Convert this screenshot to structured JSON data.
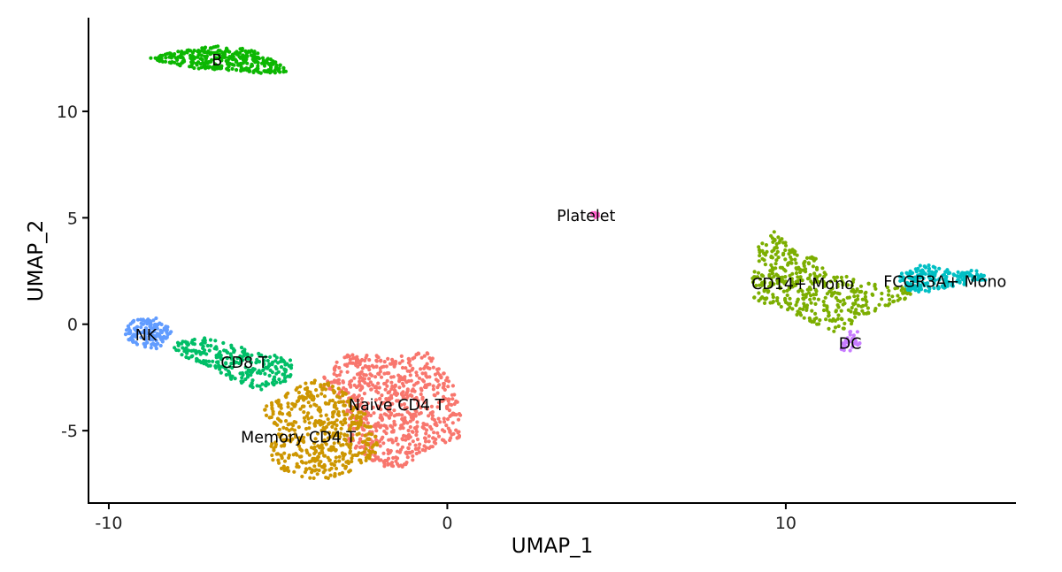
{
  "chart_data": {
    "type": "scatter",
    "title": "",
    "xlabel": "UMAP_1",
    "ylabel": "UMAP_2",
    "xlim": [
      -10.6,
      16.8
    ],
    "ylim": [
      -8.4,
      14.4
    ],
    "x_ticks": [
      -10,
      0,
      10
    ],
    "y_ticks": [
      10,
      5,
      0,
      -5
    ],
    "grid": false,
    "legend": "none",
    "clusters": [
      {
        "label": "Naive CD4 T",
        "color": "#F8766D",
        "n": 700,
        "shape": [
          [
            -3.6,
            -2.1
          ],
          [
            -2.9,
            -1.4
          ],
          [
            -1.5,
            -1.5
          ],
          [
            -0.6,
            -1.3
          ],
          [
            0.1,
            -2.6
          ],
          [
            0.4,
            -3.4
          ],
          [
            0.4,
            -5.3
          ],
          [
            -0.6,
            -5.9
          ],
          [
            -1.2,
            -6.7
          ],
          [
            -2.0,
            -6.7
          ],
          [
            -2.9,
            -5.6
          ],
          [
            -3.0,
            -3.6
          ],
          [
            -3.7,
            -3.0
          ]
        ]
      },
      {
        "label": "Memory CD4 T",
        "color": "#CD9600",
        "n": 480,
        "shape": [
          [
            -5.5,
            -4.0
          ],
          [
            -4.8,
            -3.3
          ],
          [
            -4.0,
            -2.6
          ],
          [
            -3.3,
            -2.8
          ],
          [
            -2.6,
            -3.8
          ],
          [
            -1.9,
            -5.3
          ],
          [
            -2.2,
            -6.3
          ],
          [
            -3.2,
            -7.2
          ],
          [
            -4.0,
            -7.3
          ],
          [
            -5.0,
            -6.8
          ],
          [
            -5.3,
            -6.0
          ],
          [
            -5.0,
            -5.0
          ]
        ]
      },
      {
        "label": "CD14+ Mono",
        "color": "#7CAE00",
        "n": 420,
        "shape": [
          [
            9.0,
            2.2
          ],
          [
            9.2,
            3.7
          ],
          [
            9.7,
            4.4
          ],
          [
            10.4,
            3.2
          ],
          [
            10.9,
            3.3
          ],
          [
            11.3,
            2.5
          ],
          [
            12.3,
            2.0
          ],
          [
            13.4,
            1.8
          ],
          [
            13.8,
            1.3
          ],
          [
            12.6,
            0.6
          ],
          [
            12.0,
            0.1
          ],
          [
            11.6,
            -0.5
          ],
          [
            11.0,
            -0.1
          ],
          [
            10.0,
            0.7
          ],
          [
            9.0,
            1.1
          ]
        ]
      },
      {
        "label": "B",
        "color": "#0CB702",
        "n": 330,
        "shape": [
          [
            -8.8,
            12.5
          ],
          [
            -7.8,
            12.9
          ],
          [
            -6.6,
            13.1
          ],
          [
            -5.8,
            12.9
          ],
          [
            -5.0,
            12.3
          ],
          [
            -4.6,
            11.8
          ],
          [
            -5.6,
            11.8
          ],
          [
            -6.9,
            11.9
          ],
          [
            -7.8,
            12.1
          ],
          [
            -8.6,
            12.4
          ]
        ]
      },
      {
        "label": "CD8 T",
        "color": "#00BE67",
        "n": 260,
        "shape": [
          [
            -8.2,
            -0.8
          ],
          [
            -7.2,
            -0.6
          ],
          [
            -6.2,
            -1.0
          ],
          [
            -5.3,
            -1.4
          ],
          [
            -4.6,
            -1.6
          ],
          [
            -4.6,
            -2.6
          ],
          [
            -5.5,
            -3.1
          ],
          [
            -6.2,
            -2.8
          ],
          [
            -7.0,
            -2.0
          ],
          [
            -7.9,
            -1.5
          ]
        ]
      },
      {
        "label": "FCGR3A+ Mono",
        "color": "#00BFC4",
        "n": 180,
        "shape": [
          [
            13.3,
            2.3
          ],
          [
            13.9,
            2.9
          ],
          [
            14.8,
            2.6
          ],
          [
            15.9,
            2.5
          ],
          [
            15.9,
            2.0
          ],
          [
            15.0,
            1.8
          ],
          [
            14.1,
            1.5
          ],
          [
            13.4,
            1.6
          ]
        ]
      },
      {
        "label": "NK",
        "color": "#619CFF",
        "n": 150,
        "shape": [
          [
            -9.6,
            -0.5
          ],
          [
            -9.3,
            0.2
          ],
          [
            -8.6,
            0.3
          ],
          [
            -8.1,
            -0.3
          ],
          [
            -8.5,
            -1.2
          ],
          [
            -9.2,
            -1.0
          ]
        ]
      },
      {
        "label": "DC",
        "color": "#E68613",
        "n": 0,
        "shape": []
      },
      {
        "label": "DC",
        "color": "#C77CFF",
        "n": 28,
        "shape": [
          [
            11.6,
            -1.3
          ],
          [
            11.8,
            -0.3
          ],
          [
            12.1,
            -0.2
          ],
          [
            12.2,
            -0.9
          ],
          [
            11.9,
            -1.4
          ]
        ]
      },
      {
        "label": "Platelet",
        "color": "#FF61CC",
        "n": 12,
        "shape": [
          [
            4.1,
            5.0
          ],
          [
            4.2,
            5.3
          ],
          [
            4.5,
            5.2
          ],
          [
            4.4,
            4.9
          ]
        ]
      }
    ],
    "labels": [
      {
        "text": "B",
        "x": -6.8,
        "y": 12.4
      },
      {
        "text": "Platelet",
        "x": 4.1,
        "y": 5.1
      },
      {
        "text": "CD14+ Mono",
        "x": 10.5,
        "y": 1.9
      },
      {
        "text": "FCGR3A+ Mono",
        "x": 14.7,
        "y": 2.0
      },
      {
        "text": "NK",
        "x": -8.9,
        "y": -0.5
      },
      {
        "text": "DC",
        "x": 11.9,
        "y": -0.9
      },
      {
        "text": "CD8 T",
        "x": -6.0,
        "y": -1.8
      },
      {
        "text": "Naive CD4 T",
        "x": -1.5,
        "y": -3.8
      },
      {
        "text": "Memory CD4 T",
        "x": -4.4,
        "y": -5.3
      }
    ]
  }
}
